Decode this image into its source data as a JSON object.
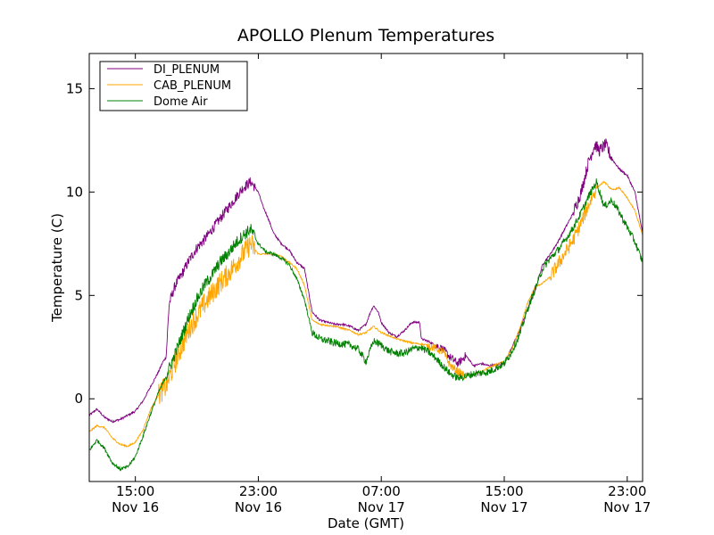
{
  "chart_data": {
    "type": "line",
    "title": "APOLLO Plenum Temperatures",
    "xlabel": "Date (GMT)",
    "ylabel": "Temperature (C)",
    "x_unit": "hours since Nov 16 12:00 GMT",
    "xlim": [
      0,
      36
    ],
    "ylim": [
      -4,
      16.7
    ],
    "x_ticks": [
      {
        "x": 3,
        "time": "15:00",
        "date": "Nov 16"
      },
      {
        "x": 11,
        "time": "23:00",
        "date": "Nov 16"
      },
      {
        "x": 19,
        "time": "07:00",
        "date": "Nov 17"
      },
      {
        "x": 27,
        "time": "15:00",
        "date": "Nov 17"
      },
      {
        "x": 35,
        "time": "23:00",
        "date": "Nov 17"
      }
    ],
    "y_ticks": [
      {
        "value": 0,
        "label": "0"
      },
      {
        "value": 5,
        "label": "5"
      },
      {
        "value": 10,
        "label": "10"
      },
      {
        "value": 15,
        "label": "15"
      }
    ],
    "legend_position": "top-left",
    "series": [
      {
        "name": "DI_PLENUM",
        "color": "#800080",
        "points": [
          [
            0,
            -0.8
          ],
          [
            0.5,
            -0.5
          ],
          [
            1,
            -0.9
          ],
          [
            1.5,
            -1.1
          ],
          [
            2,
            -1.0
          ],
          [
            3,
            -0.6
          ],
          [
            3.5,
            -0.1
          ],
          [
            4,
            0.6
          ],
          [
            4.5,
            1.3
          ],
          [
            4.8,
            1.8
          ],
          [
            5,
            2.0
          ],
          [
            5.2,
            4.6
          ],
          [
            5.6,
            5.5
          ],
          [
            6,
            6.0
          ],
          [
            6.5,
            6.7
          ],
          [
            7,
            7.3
          ],
          [
            7.5,
            7.7
          ],
          [
            8,
            8.2
          ],
          [
            8.5,
            8.7
          ],
          [
            9,
            9.2
          ],
          [
            9.5,
            9.7
          ],
          [
            10,
            10.2
          ],
          [
            10.5,
            10.5
          ],
          [
            11,
            10.0
          ],
          [
            11.3,
            9.3
          ],
          [
            11.6,
            8.8
          ],
          [
            12,
            8.0
          ],
          [
            12.5,
            7.5
          ],
          [
            13,
            7.2
          ],
          [
            13.5,
            6.6
          ],
          [
            14,
            6.3
          ],
          [
            14.5,
            4.2
          ],
          [
            15,
            3.8
          ],
          [
            16,
            3.6
          ],
          [
            16.5,
            3.6
          ],
          [
            17,
            3.5
          ],
          [
            17.5,
            3.3
          ],
          [
            18,
            3.6
          ],
          [
            18.3,
            4.2
          ],
          [
            18.5,
            4.5
          ],
          [
            18.8,
            4.2
          ],
          [
            19,
            3.7
          ],
          [
            19.5,
            3.2
          ],
          [
            20,
            3.0
          ],
          [
            20.5,
            3.3
          ],
          [
            21,
            3.7
          ],
          [
            21.5,
            3.7
          ],
          [
            21.6,
            2.9
          ],
          [
            22,
            2.8
          ],
          [
            22.5,
            2.6
          ],
          [
            23,
            2.4
          ],
          [
            23.5,
            2.0
          ],
          [
            24,
            1.7
          ],
          [
            24.5,
            2.1
          ],
          [
            25,
            1.6
          ],
          [
            25.5,
            1.7
          ],
          [
            26,
            1.6
          ],
          [
            27,
            1.7
          ],
          [
            27.5,
            2.5
          ],
          [
            28,
            3.3
          ],
          [
            28.5,
            4.3
          ],
          [
            29,
            5.2
          ],
          [
            29.5,
            6.5
          ],
          [
            30,
            7.0
          ],
          [
            30.5,
            7.6
          ],
          [
            31,
            8.3
          ],
          [
            31.5,
            9.0
          ],
          [
            32,
            10.0
          ],
          [
            32.5,
            11.5
          ],
          [
            32.9,
            12.3
          ],
          [
            33.2,
            12.0
          ],
          [
            33.6,
            12.3
          ],
          [
            34,
            11.6
          ],
          [
            34.5,
            11.1
          ],
          [
            35,
            10.8
          ],
          [
            35.5,
            10.0
          ],
          [
            36,
            8.0
          ]
        ]
      },
      {
        "name": "CAB_PLENUM",
        "color": "#ffa500",
        "points": [
          [
            0,
            -1.6
          ],
          [
            0.5,
            -1.3
          ],
          [
            1,
            -1.4
          ],
          [
            1.5,
            -1.9
          ],
          [
            2,
            -2.2
          ],
          [
            2.5,
            -2.3
          ],
          [
            3,
            -2.1
          ],
          [
            3.5,
            -1.5
          ],
          [
            4,
            -0.5
          ],
          [
            4.5,
            0.2
          ],
          [
            5,
            0.6
          ],
          [
            5.5,
            1.6
          ],
          [
            6,
            2.5
          ],
          [
            6.5,
            3.4
          ],
          [
            7,
            4.0
          ],
          [
            7.5,
            4.6
          ],
          [
            8,
            5.1
          ],
          [
            8.5,
            5.6
          ],
          [
            9,
            6.0
          ],
          [
            9.5,
            6.5
          ],
          [
            10,
            7.0
          ],
          [
            10.5,
            7.5
          ],
          [
            11,
            7.0
          ],
          [
            12,
            7.0
          ],
          [
            12.5,
            6.9
          ],
          [
            13,
            6.6
          ],
          [
            13.5,
            6.3
          ],
          [
            14,
            5.5
          ],
          [
            14.5,
            3.8
          ],
          [
            15,
            3.6
          ],
          [
            16,
            3.5
          ],
          [
            17,
            3.3
          ],
          [
            17.5,
            3.1
          ],
          [
            18,
            3.2
          ],
          [
            18.5,
            3.5
          ],
          [
            19,
            3.2
          ],
          [
            20,
            2.9
          ],
          [
            21,
            2.7
          ],
          [
            22,
            2.6
          ],
          [
            23,
            2.3
          ],
          [
            23.5,
            1.6
          ],
          [
            24,
            1.3
          ],
          [
            24.5,
            1.1
          ],
          [
            25,
            1.2
          ],
          [
            25.5,
            1.3
          ],
          [
            26,
            1.5
          ],
          [
            27,
            1.8
          ],
          [
            27.5,
            2.4
          ],
          [
            28,
            3.4
          ],
          [
            28.5,
            4.6
          ],
          [
            29,
            5.4
          ],
          [
            29.5,
            5.6
          ],
          [
            30,
            5.9
          ],
          [
            30.5,
            6.5
          ],
          [
            31,
            7.1
          ],
          [
            31.5,
            7.7
          ],
          [
            32,
            8.5
          ],
          [
            32.5,
            9.4
          ],
          [
            33,
            10.2
          ],
          [
            33.5,
            10.5
          ],
          [
            34,
            10.1
          ],
          [
            34.5,
            10.2
          ],
          [
            35,
            9.7
          ],
          [
            35.5,
            9.1
          ],
          [
            36,
            7.9
          ]
        ]
      },
      {
        "name": "Dome Air",
        "color": "#008000",
        "points": [
          [
            0,
            -2.5
          ],
          [
            0.5,
            -2.0
          ],
          [
            1,
            -2.4
          ],
          [
            1.5,
            -3.1
          ],
          [
            2,
            -3.4
          ],
          [
            2.5,
            -3.3
          ],
          [
            3,
            -2.8
          ],
          [
            3.5,
            -1.8
          ],
          [
            4,
            -0.7
          ],
          [
            4.5,
            0.3
          ],
          [
            5,
            1.1
          ],
          [
            5.5,
            2.0
          ],
          [
            6,
            3.0
          ],
          [
            6.5,
            4.0
          ],
          [
            7,
            4.8
          ],
          [
            7.5,
            5.5
          ],
          [
            8,
            6.0
          ],
          [
            8.5,
            6.6
          ],
          [
            9,
            7.0
          ],
          [
            9.5,
            7.5
          ],
          [
            10,
            7.9
          ],
          [
            10.5,
            8.2
          ],
          [
            11,
            7.5
          ],
          [
            11.5,
            7.1
          ],
          [
            12,
            7.0
          ],
          [
            12.5,
            6.8
          ],
          [
            13,
            6.5
          ],
          [
            13.5,
            5.8
          ],
          [
            14,
            4.8
          ],
          [
            14.5,
            3.2
          ],
          [
            15,
            2.9
          ],
          [
            16,
            2.7
          ],
          [
            17,
            2.6
          ],
          [
            17.5,
            2.4
          ],
          [
            18,
            1.8
          ],
          [
            18.5,
            2.8
          ],
          [
            19,
            2.6
          ],
          [
            19.5,
            2.3
          ],
          [
            20,
            2.2
          ],
          [
            20.5,
            2.2
          ],
          [
            21,
            2.4
          ],
          [
            21.5,
            2.5
          ],
          [
            22,
            2.3
          ],
          [
            22.5,
            2.0
          ],
          [
            23,
            1.6
          ],
          [
            23.5,
            1.2
          ],
          [
            24,
            1.0
          ],
          [
            24.5,
            1.1
          ],
          [
            25,
            1.2
          ],
          [
            26,
            1.3
          ],
          [
            27,
            1.7
          ],
          [
            27.5,
            2.3
          ],
          [
            28,
            3.1
          ],
          [
            28.5,
            4.3
          ],
          [
            29,
            5.3
          ],
          [
            29.5,
            6.3
          ],
          [
            30,
            6.8
          ],
          [
            30.5,
            7.2
          ],
          [
            31,
            7.7
          ],
          [
            31.5,
            8.3
          ],
          [
            32,
            9.0
          ],
          [
            32.5,
            9.8
          ],
          [
            33,
            10.5
          ],
          [
            33.5,
            9.3
          ],
          [
            34,
            9.6
          ],
          [
            34.5,
            9.0
          ],
          [
            35,
            8.3
          ],
          [
            35.5,
            7.6
          ],
          [
            36,
            6.6
          ]
        ]
      }
    ]
  }
}
